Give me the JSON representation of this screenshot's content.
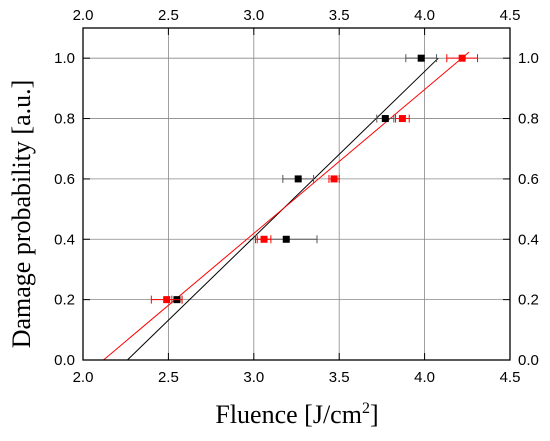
{
  "chart_data": {
    "type": "scatter",
    "xlabel": "Fluence [J/cm",
    "xlabel_sup": "2",
    "xlabel_end": "]",
    "ylabel": "Damage probability [a.u.]",
    "xlim": [
      2.0,
      4.5
    ],
    "ylim": [
      0.0,
      1.1
    ],
    "x_ticks": [
      "2.0",
      "2.5",
      "3.0",
      "3.5",
      "4.0",
      "4.5"
    ],
    "y_ticks": [
      "0.0",
      "0.2",
      "0.4",
      "0.6",
      "0.8",
      "1.0"
    ],
    "grid": true,
    "series": [
      {
        "color": "#000000",
        "points": [
          {
            "x": 2.55,
            "y": 0.2,
            "xerr": 0.03
          },
          {
            "x": 3.19,
            "y": 0.4,
            "xerr": 0.18
          },
          {
            "x": 3.26,
            "y": 0.6,
            "xerr": 0.09
          },
          {
            "x": 3.77,
            "y": 0.8,
            "xerr": 0.05
          },
          {
            "x": 3.98,
            "y": 1.0,
            "xerr": 0.09
          }
        ],
        "fit": {
          "x0": 2.26,
          "y0": 0.0,
          "x1": 4.08,
          "y1": 1.0
        }
      },
      {
        "color": "#ff0000",
        "points": [
          {
            "x": 2.49,
            "y": 0.2,
            "xerr": 0.09
          },
          {
            "x": 3.06,
            "y": 0.4,
            "xerr": 0.04
          },
          {
            "x": 3.47,
            "y": 0.6,
            "xerr": 0.03
          },
          {
            "x": 3.87,
            "y": 0.8,
            "xerr": 0.04
          },
          {
            "x": 4.22,
            "y": 1.0,
            "xerr": 0.09
          }
        ],
        "fit": {
          "x0": 2.12,
          "y0": 0.0,
          "x1": 4.26,
          "y1": 1.02
        }
      }
    ]
  }
}
